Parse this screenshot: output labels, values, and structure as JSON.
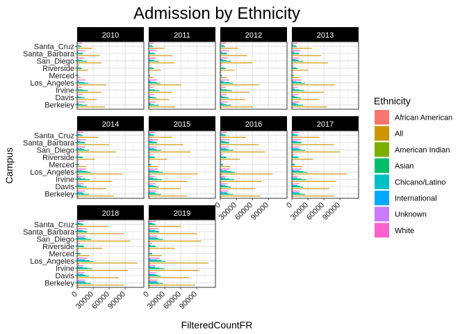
{
  "chart_data": {
    "type": "bar",
    "orientation": "horizontal",
    "title": "Admission by Ethnicity",
    "xlabel": "FilteredCountFR",
    "ylabel": "Campus",
    "xlim": [
      0,
      125000
    ],
    "x_ticks": [
      0,
      30000,
      60000,
      90000
    ],
    "x_tick_labels": [
      "0",
      "30000",
      "60000",
      "90000"
    ],
    "grid": true,
    "legend": {
      "title": "Ethnicity",
      "position": "right"
    },
    "categories": [
      "Berkeley",
      "Davis",
      "Irvine",
      "Los_Angeles",
      "Merced",
      "Riverside",
      "San_Diego",
      "Santa_Barbara",
      "Santa_Cruz"
    ],
    "series": [
      {
        "name": "African American",
        "color": "#F8766D"
      },
      {
        "name": "All",
        "color": "#CD9600"
      },
      {
        "name": "American Indian",
        "color": "#7CAE00"
      },
      {
        "name": "Asian",
        "color": "#00BE67"
      },
      {
        "name": "Chicano/Latino",
        "color": "#00BFC4"
      },
      {
        "name": "International",
        "color": "#00A9FF"
      },
      {
        "name": "Unknown",
        "color": "#C77CFF"
      },
      {
        "name": "White",
        "color": "#FF61CC"
      }
    ],
    "panels": [
      {
        "label": "2010",
        "values": {
          "African American": [
            2000,
            1400,
            1300,
            2400,
            400,
            1000,
            1500,
            1200,
            900
          ],
          "All": [
            52000,
            37000,
            45000,
            55000,
            7000,
            21000,
            46000,
            43000,
            28000
          ],
          "American Indian": [
            300,
            300,
            200,
            400,
            60,
            150,
            300,
            300,
            200
          ],
          "Asian": [
            19000,
            14000,
            20000,
            21000,
            2000,
            9000,
            18000,
            11000,
            8000
          ],
          "Chicano/Latino": [
            9000,
            8000,
            11000,
            14000,
            2000,
            7000,
            9000,
            10000,
            6000
          ],
          "International": [
            3000,
            1800,
            1500,
            3800,
            200,
            600,
            2500,
            1800,
            1000
          ],
          "Unknown": [
            2000,
            1300,
            1400,
            1800,
            300,
            800,
            1400,
            1500,
            1000
          ],
          "White": [
            14000,
            11000,
            9000,
            16000,
            1500,
            4000,
            13000,
            15000,
            10000
          ]
        }
      },
      {
        "label": "2011",
        "values": {
          "African American": [
            2100,
            1500,
            1400,
            2500,
            450,
            1100,
            1600,
            1300,
            1000
          ],
          "All": [
            50000,
            38000,
            44000,
            61000,
            9000,
            23000,
            48000,
            44000,
            29000
          ],
          "American Indian": [
            300,
            300,
            200,
            400,
            70,
            160,
            300,
            300,
            200
          ],
          "Asian": [
            19000,
            15000,
            20000,
            22000,
            2500,
            9500,
            19000,
            12000,
            8500
          ],
          "Chicano/Latino": [
            9500,
            8500,
            11500,
            15000,
            2500,
            7500,
            9500,
            10500,
            6500
          ],
          "International": [
            4000,
            2500,
            2000,
            5000,
            300,
            800,
            3500,
            2500,
            1500
          ],
          "Unknown": [
            2000,
            1400,
            1500,
            1900,
            350,
            850,
            1500,
            1600,
            1100
          ],
          "White": [
            13000,
            11000,
            9000,
            16000,
            1600,
            4200,
            13000,
            15000,
            10000
          ]
        }
      },
      {
        "label": "2012",
        "values": {
          "African American": [
            2200,
            1600,
            1500,
            2700,
            500,
            1200,
            1700,
            1400,
            1100
          ],
          "All": [
            61000,
            47000,
            55000,
            73000,
            12000,
            27000,
            60000,
            50000,
            33000
          ],
          "American Indian": [
            300,
            300,
            200,
            400,
            80,
            170,
            300,
            300,
            200
          ],
          "Asian": [
            20000,
            16000,
            22000,
            24000,
            3000,
            10000,
            20000,
            13000,
            9000
          ],
          "Chicano/Latino": [
            11000,
            10000,
            13000,
            17000,
            3000,
            8500,
            11000,
            11500,
            7500
          ],
          "International": [
            6000,
            4000,
            3500,
            7000,
            400,
            1200,
            5500,
            3500,
            2200
          ],
          "Unknown": [
            2200,
            1500,
            1600,
            2000,
            400,
            900,
            1600,
            1700,
            1200
          ],
          "White": [
            14000,
            12000,
            10000,
            17000,
            1800,
            4500,
            14000,
            16000,
            11000
          ]
        }
      },
      {
        "label": "2013",
        "values": {
          "African American": [
            2300,
            1700,
            1600,
            2800,
            550,
            1300,
            1800,
            1500,
            1200
          ],
          "All": [
            66000,
            50000,
            60000,
            80000,
            15000,
            30000,
            68000,
            55000,
            37000
          ],
          "American Indian": [
            300,
            300,
            200,
            400,
            90,
            180,
            300,
            300,
            200
          ],
          "Asian": [
            21000,
            17000,
            23000,
            25000,
            3500,
            10500,
            21000,
            14000,
            9500
          ],
          "Chicano/Latino": [
            12000,
            11000,
            14000,
            18000,
            3500,
            9000,
            12000,
            12500,
            8000
          ],
          "International": [
            8000,
            5500,
            5000,
            9000,
            500,
            1500,
            7500,
            5000,
            3000
          ],
          "Unknown": [
            2300,
            1600,
            1700,
            2100,
            450,
            950,
            1700,
            1800,
            1300
          ],
          "White": [
            14000,
            12000,
            10000,
            17000,
            2000,
            4700,
            14000,
            16000,
            11000
          ]
        }
      },
      {
        "label": "2014",
        "values": {
          "African American": [
            2400,
            1800,
            1700,
            3000,
            600,
            1400,
            1900,
            1600,
            1300
          ],
          "All": [
            69000,
            54000,
            66000,
            85000,
            17000,
            33000,
            73000,
            60000,
            40000
          ],
          "American Indian": [
            300,
            300,
            200,
            400,
            100,
            190,
            300,
            300,
            200
          ],
          "Asian": [
            22000,
            18000,
            24000,
            26000,
            4000,
            11000,
            22000,
            15000,
            10000
          ],
          "Chicano/Latino": [
            13000,
            12000,
            15000,
            19000,
            4000,
            9500,
            13000,
            13500,
            8500
          ],
          "International": [
            10000,
            7000,
            6500,
            11000,
            600,
            1800,
            9000,
            6000,
            3800
          ],
          "Unknown": [
            2400,
            1700,
            1800,
            2200,
            500,
            1000,
            1800,
            1900,
            1400
          ],
          "White": [
            14500,
            12500,
            10500,
            17500,
            2200,
            4900,
            14500,
            16500,
            11500
          ]
        }
      },
      {
        "label": "2015",
        "values": {
          "African American": [
            2500,
            1900,
            1800,
            3100,
            650,
            1500,
            2000,
            1700,
            1400
          ],
          "All": [
            72000,
            60000,
            72000,
            92000,
            18000,
            35000,
            78000,
            65000,
            44000
          ],
          "American Indian": [
            300,
            300,
            200,
            400,
            110,
            200,
            300,
            300,
            200
          ],
          "Asian": [
            23000,
            19000,
            25000,
            27000,
            4500,
            11500,
            23000,
            16000,
            10500
          ],
          "Chicano/Latino": [
            14000,
            13000,
            16000,
            20000,
            4500,
            10000,
            14000,
            14500,
            9000
          ],
          "International": [
            11000,
            8500,
            8000,
            12000,
            700,
            2000,
            10500,
            7500,
            4500
          ],
          "Unknown": [
            2500,
            1800,
            1900,
            2300,
            550,
            1050,
            1900,
            2000,
            1500
          ],
          "White": [
            15000,
            13000,
            11000,
            18000,
            2400,
            5100,
            15000,
            17000,
            12000
          ]
        }
      },
      {
        "label": "2016",
        "values": {
          "African American": [
            2600,
            2000,
            1900,
            3300,
            700,
            1600,
            2100,
            1800,
            1500
          ],
          "All": [
            75000,
            65000,
            78000,
            98000,
            19000,
            37000,
            84000,
            72000,
            48000
          ],
          "American Indian": [
            300,
            300,
            200,
            400,
            120,
            210,
            300,
            300,
            200
          ],
          "Asian": [
            24000,
            20000,
            26000,
            28000,
            5000,
            12000,
            24000,
            17000,
            11000
          ],
          "Chicano/Latino": [
            15000,
            14000,
            17000,
            21000,
            5000,
            10500,
            15000,
            15500,
            9500
          ],
          "International": [
            12000,
            9500,
            9000,
            13000,
            800,
            2200,
            11500,
            8500,
            5000
          ],
          "Unknown": [
            2600,
            1900,
            2000,
            2400,
            600,
            1100,
            2000,
            2100,
            1600
          ],
          "White": [
            15000,
            13000,
            11000,
            18000,
            2500,
            5200,
            15000,
            17000,
            12000
          ]
        }
      },
      {
        "label": "2017",
        "values": {
          "African American": [
            2700,
            2100,
            2000,
            3400,
            750,
            1700,
            2200,
            1900,
            1600
          ],
          "All": [
            79000,
            70000,
            83000,
            103000,
            20000,
            40000,
            90000,
            79000,
            52000
          ],
          "American Indian": [
            300,
            300,
            200,
            400,
            130,
            220,
            300,
            300,
            200
          ],
          "Asian": [
            25000,
            21000,
            27000,
            29000,
            5500,
            12500,
            25000,
            18000,
            11500
          ],
          "Chicano/Latino": [
            16000,
            15000,
            18000,
            22000,
            5500,
            11000,
            16000,
            16500,
            10000
          ],
          "International": [
            13000,
            10500,
            10000,
            14000,
            900,
            2400,
            12500,
            9500,
            5500
          ],
          "Unknown": [
            2700,
            2000,
            2100,
            2500,
            650,
            1150,
            2100,
            2200,
            1700
          ],
          "White": [
            15500,
            13500,
            11500,
            18500,
            2600,
            5300,
            15500,
            17500,
            12500
          ]
        }
      },
      {
        "label": "2018",
        "values": {
          "African American": [
            2800,
            2200,
            2100,
            3600,
            800,
            1800,
            2300,
            2000,
            1700
          ],
          "All": [
            88000,
            78000,
            95000,
            113000,
            23000,
            47000,
            100000,
            87000,
            58000
          ],
          "American Indian": [
            300,
            300,
            200,
            400,
            140,
            230,
            300,
            300,
            200
          ],
          "Asian": [
            26000,
            22000,
            28000,
            30000,
            6000,
            13000,
            26000,
            19000,
            12000
          ],
          "Chicano/Latino": [
            17000,
            16000,
            19000,
            23000,
            6000,
            11500,
            17000,
            17500,
            10500
          ],
          "International": [
            14000,
            11500,
            11000,
            15000,
            1000,
            2600,
            13500,
            10500,
            6000
          ],
          "Unknown": [
            2800,
            2100,
            2200,
            2600,
            700,
            1200,
            2200,
            2300,
            1800
          ],
          "White": [
            16000,
            14000,
            12000,
            19000,
            2700,
            5400,
            16000,
            18000,
            13000
          ]
        }
      },
      {
        "label": "2019",
        "values": {
          "African American": [
            2900,
            2300,
            2200,
            3700,
            850,
            1900,
            2400,
            2100,
            1800
          ],
          "All": [
            87000,
            76000,
            95000,
            112000,
            25000,
            49000,
            99000,
            90000,
            60000
          ],
          "American Indian": [
            300,
            300,
            200,
            400,
            150,
            240,
            300,
            300,
            200
          ],
          "Asian": [
            27000,
            23000,
            29000,
            31000,
            6500,
            13500,
            27000,
            20000,
            12500
          ],
          "Chicano/Latino": [
            18000,
            17000,
            20000,
            24000,
            6500,
            12000,
            18000,
            18500,
            11000
          ],
          "International": [
            15000,
            12500,
            12000,
            16000,
            1100,
            2800,
            14500,
            11500,
            6500
          ],
          "Unknown": [
            2900,
            2200,
            2300,
            2700,
            750,
            1250,
            2300,
            2400,
            1900
          ],
          "White": [
            16500,
            14500,
            12500,
            19500,
            2800,
            5500,
            16500,
            18500,
            13500
          ]
        }
      }
    ]
  }
}
